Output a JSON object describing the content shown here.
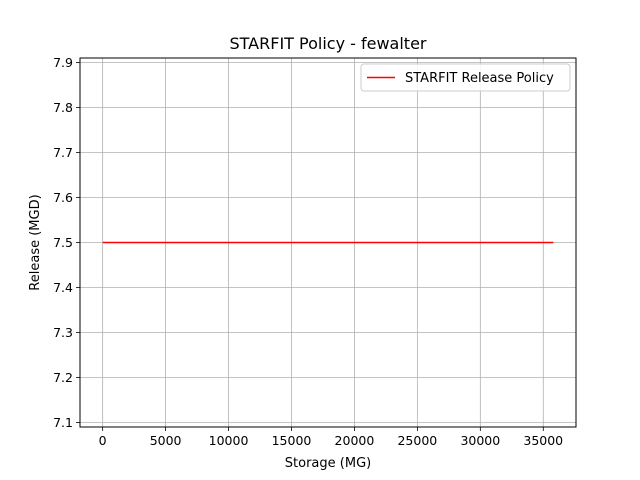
{
  "chart_data": {
    "type": "line",
    "title": "STARFIT Policy - fewalter",
    "xlabel": "Storage (MG)",
    "ylabel": "Release (MGD)",
    "xlim": [
      -1800,
      37600
    ],
    "ylim": [
      7.09,
      7.91
    ],
    "xticks": [
      0,
      5000,
      10000,
      15000,
      20000,
      25000,
      30000,
      35000
    ],
    "yticks": [
      7.1,
      7.2,
      7.3,
      7.4,
      7.5,
      7.6,
      7.7,
      7.8,
      7.9
    ],
    "grid": true,
    "legend_position": "top-right",
    "series": [
      {
        "name": "STARFIT Release Policy",
        "color": "#ff0000",
        "x": [
          0,
          35800
        ],
        "y": [
          7.5,
          7.5
        ]
      }
    ]
  }
}
